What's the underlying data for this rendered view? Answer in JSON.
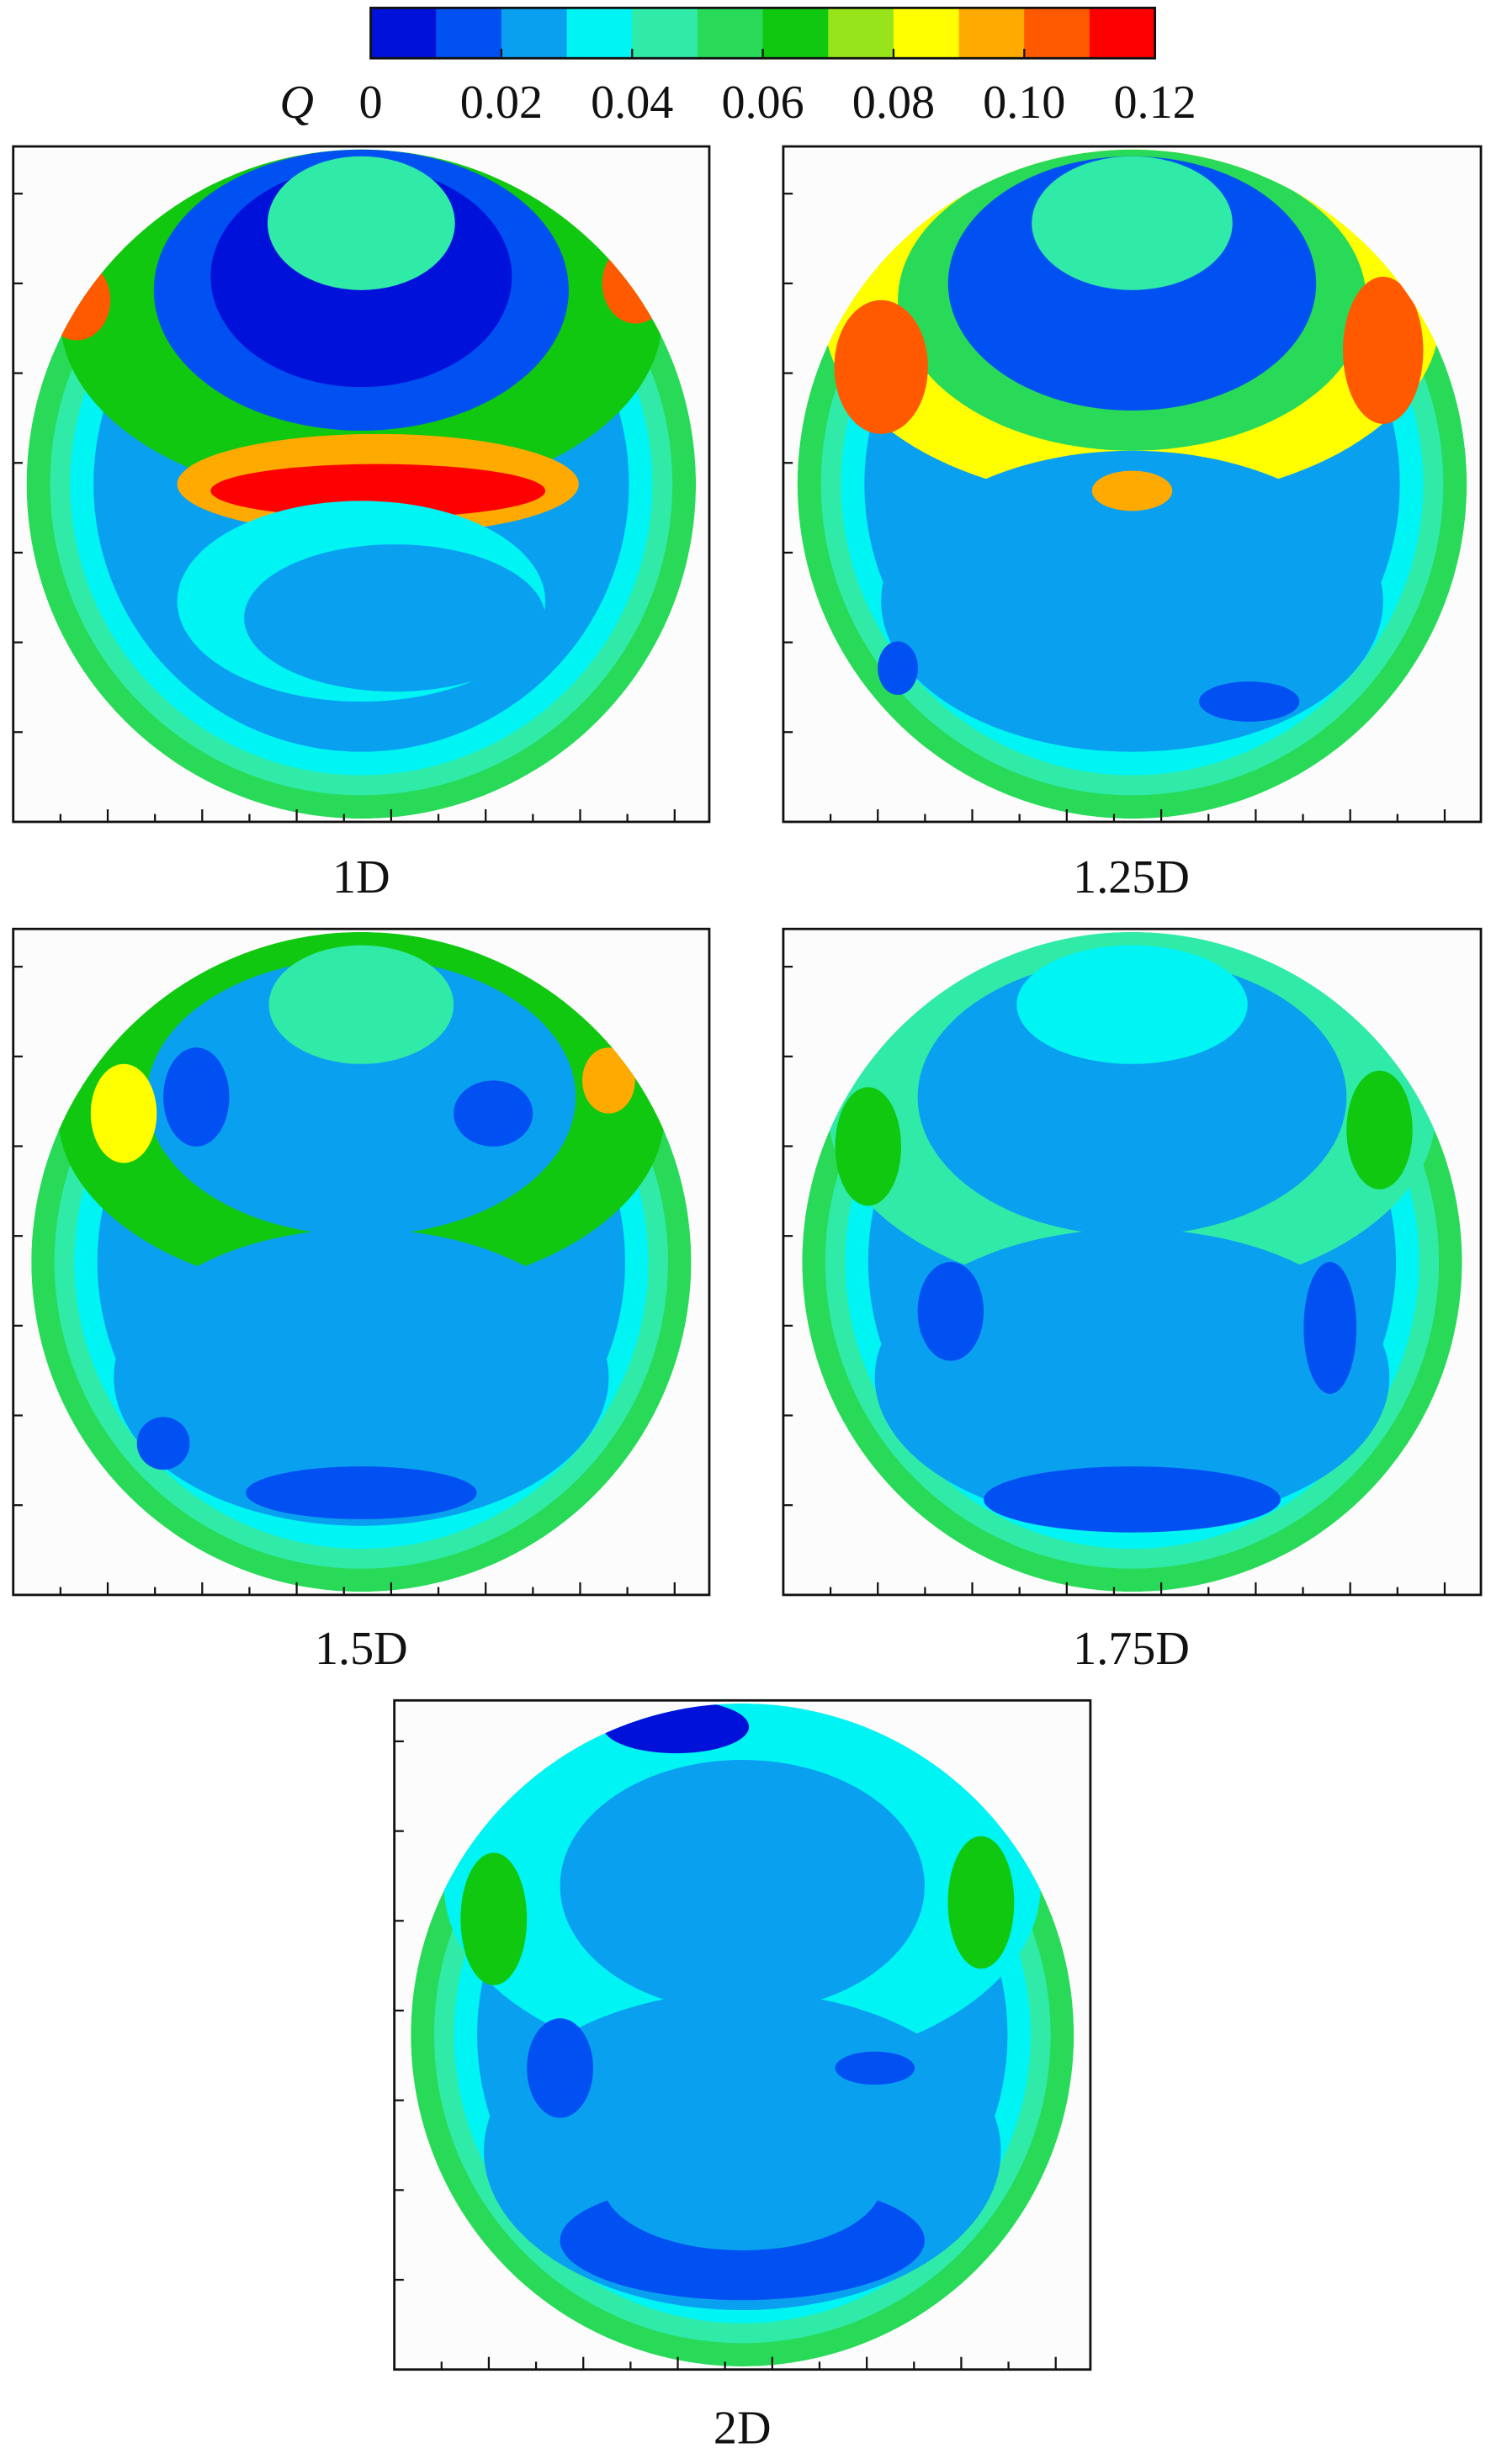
{
  "chart_data": {
    "type": "contour",
    "colorbar": {
      "label": "Q",
      "lim": [
        0,
        0.12
      ],
      "ticks": [
        0,
        0.02,
        0.04,
        0.06,
        0.08,
        {
          "value": 0.1,
          "label": "0.10"
        },
        0.12
      ],
      "colors": [
        "#0012d9",
        "#0050f2",
        "#0aa0f0",
        "#00f4f4",
        "#30eaa8",
        "#28da58",
        "#10c810",
        "#98e41a",
        "#ffff00",
        "#ffaa00",
        "#ff5a00",
        "#ff0000"
      ]
    },
    "panels": [
      {
        "title": "1D"
      },
      {
        "title": "1.25D"
      },
      {
        "title": "1.5D"
      },
      {
        "title": "1.75D"
      },
      {
        "title": "2D"
      }
    ]
  }
}
